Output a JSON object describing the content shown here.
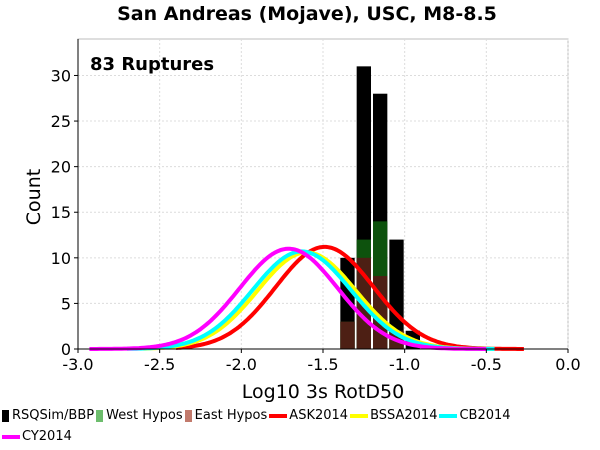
{
  "chart_data": {
    "type": "bar",
    "title": "San Andreas (Mojave), USC, M8-8.5",
    "annotation": "83 Ruptures",
    "xlabel": "Log10 3s RotD50",
    "ylabel": "Count",
    "xlim": [
      -3.0,
      0.0
    ],
    "ylim": [
      0,
      34
    ],
    "xticks": [
      "-3.0",
      "-2.5",
      "-2.0",
      "-1.5",
      "-1.0",
      "-0.5",
      "0.0"
    ],
    "yticks": [
      "0",
      "5",
      "10",
      "15",
      "20",
      "25",
      "30"
    ],
    "grid": true,
    "legend_position": "bottom",
    "bin_width": 0.1,
    "bins": [
      {
        "x0": -1.4,
        "x1": -1.3,
        "total": 10,
        "west": 3,
        "east": 3
      },
      {
        "x0": -1.3,
        "x1": -1.2,
        "total": 31,
        "west": 12,
        "east": 10
      },
      {
        "x0": -1.2,
        "x1": -1.1,
        "total": 28,
        "west": 14,
        "east": 8
      },
      {
        "x0": -1.1,
        "x1": -1.0,
        "total": 12,
        "west": 2,
        "east": 2
      },
      {
        "x0": -1.0,
        "x1": -0.9,
        "total": 2,
        "west": 0,
        "east": 0
      }
    ],
    "series": [
      {
        "name": "RSQSim/BBP",
        "kind": "bar",
        "color": "#000000",
        "field": "total"
      },
      {
        "name": "West Hypos",
        "kind": "bar",
        "color": "#4ea64e",
        "field": "west"
      },
      {
        "name": "East Hypos",
        "kind": "bar",
        "color": "#b86a5c",
        "field": "east"
      },
      {
        "name": "ASK2014",
        "kind": "line",
        "color": "#ff0000",
        "mean": -1.49,
        "peak": 11.2,
        "sigma": 0.3,
        "x_range": [
          -2.4,
          -0.27
        ]
      },
      {
        "name": "BSSA2014",
        "kind": "line",
        "color": "#ffff00",
        "mean": -1.6,
        "peak": 10.6,
        "sigma": 0.3,
        "x_range": [
          -2.6,
          -0.45
        ]
      },
      {
        "name": "CB2014",
        "kind": "line",
        "color": "#00ffff",
        "mean": -1.63,
        "peak": 10.7,
        "sigma": 0.3,
        "x_range": [
          -2.7,
          -0.45
        ]
      },
      {
        "name": "CY2014",
        "kind": "line",
        "color": "#ff00ff",
        "mean": -1.71,
        "peak": 11.0,
        "sigma": 0.3,
        "x_range": [
          -2.93,
          -0.5
        ]
      }
    ]
  }
}
